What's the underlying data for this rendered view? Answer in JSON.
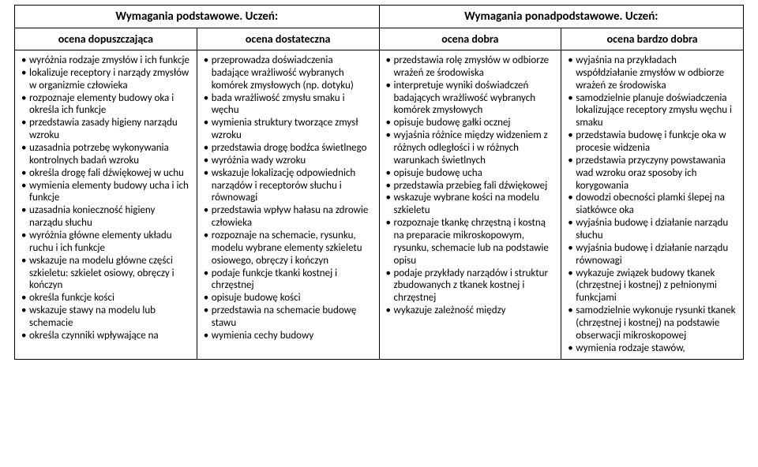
{
  "headers": {
    "left": "Wymagania podstawowe. Uczeń:",
    "right": "Wymagania ponadpodstawowe. Uczeń:",
    "c1": "ocena dopuszczająca",
    "c2": "ocena dostateczna",
    "c3": "ocena dobra",
    "c4": "ocena bardzo dobra"
  },
  "col1": [
    "wyróżnia rodzaje zmysłów i ich funkcje",
    "lokalizuje receptory i narządy zmysłów w organizmie człowieka",
    "rozpoznaje elementy budowy oka i określa ich funkcje",
    "przedstawia zasady higieny narządu wzroku",
    "uzasadnia potrzebę wykonywania kontrolnych badań wzroku",
    "określa drogę fali dźwiękowej w uchu",
    "wymienia elementy budowy ucha i ich funkcje",
    "uzasadnia konieczność higieny narządu słuchu",
    "wyróżnia główne elementy układu ruchu i ich funkcje",
    "wskazuje na modelu główne części szkieletu: szkielet osiowy, obręczy i kończyn",
    "określa funkcje kości",
    "wskazuje stawy na modelu lub schemacie",
    "określa czynniki wpływające na"
  ],
  "col2": [
    "przeprowadza doświadczenia badające wrażliwość wybranych komórek zmysłowych (np. dotyku)",
    "bada wrażliwość zmysłu smaku i węchu",
    "wymienia struktury tworzące zmysł wzroku",
    "przedstawia drogę bodźca świetlnego",
    "wyróżnia wady wzroku",
    "wskazuje lokalizację odpowiednich narządów i receptorów słuchu i równowagi",
    "przedstawia wpływ hałasu na zdrowie człowieka",
    "rozpoznaje na schemacie, rysunku, modelu wybrane elementy szkieletu osiowego, obręczy i kończyn",
    "podaje funkcje tkanki kostnej i chrzęstnej",
    "opisuje budowę kości",
    "przedstawia na schemacie budowę stawu",
    "wymienia cechy budowy"
  ],
  "col3": [
    "przedstawia rolę zmysłów w odbiorze wrażeń ze środowiska",
    "interpretuje wyniki doświadczeń badających wrażliwość wybranych komórek zmysłowych",
    "opisuje budowę gałki ocznej",
    "wyjaśnia różnice między widzeniem z różnych odległości i w różnych warunkach świetlnych",
    "opisuje budowę ucha",
    "przedstawia przebieg fali dźwiękowej",
    "wskazuje wybrane kości na modelu szkieletu",
    "rozpoznaje tkankę chrzęstną i kostną na preparacie mikroskopowym, rysunku, schemacie lub na podstawie opisu",
    "podaje przykłady narządów i struktur zbudowanych z tkanek kostnej i chrzęstnej",
    "wykazuje zależność między"
  ],
  "col4": [
    "wyjaśnia na przykładach współdziałanie zmysłów w odbiorze wrażeń ze środowiska",
    "samodzielnie planuje doświadczenia lokalizujące receptory zmysłu węchu i smaku",
    "przedstawia budowę i funkcje oka w procesie widzenia",
    "przedstawia przyczyny powstawania wad wzroku oraz sposoby ich korygowania",
    "dowodzi obecności plamki ślepej na siatkówce oka",
    "wyjaśnia budowę i działanie narządu słuchu",
    "wyjaśnia budowę i działanie narządu równowagi",
    "wykazuje związek budowy tkanek (chrzęstnej i kostnej) z pełnionymi funkcjami",
    "samodzielnie wykonuje rysunki tkanek (chrzęstnej i kostnej) na podstawie obserwacji mikroskopowej",
    "wymienia rodzaje stawów,"
  ]
}
